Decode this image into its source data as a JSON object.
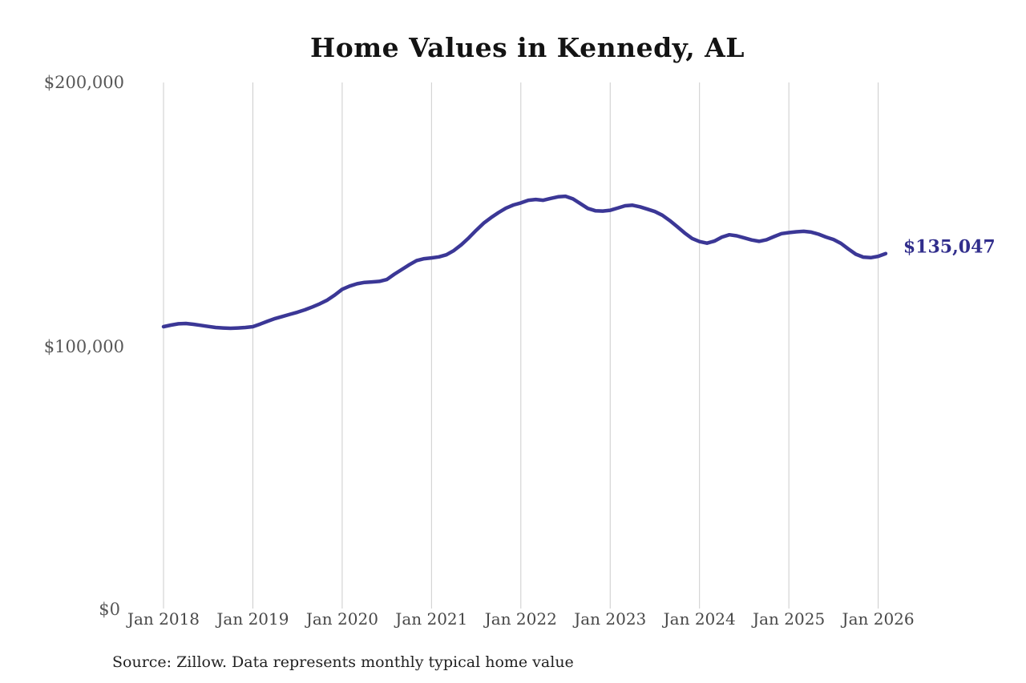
{
  "title": "Home Values in Kennedy, AL",
  "source_note": "Source: Zillow. Data represents monthly typical home value",
  "end_label": "$135,047",
  "chart_data": {
    "type": "line",
    "title": "Home Values in Kennedy, AL",
    "xlabel": "",
    "ylabel": "",
    "x_start": "Jan 2018",
    "x_end": "Feb 2026",
    "frequency": "monthly",
    "x_tick_labels": [
      "Jan 2018",
      "Jan 2019",
      "Jan 2020",
      "Jan 2021",
      "Jan 2022",
      "Jan 2023",
      "Jan 2024",
      "Jan 2025",
      "Jan 2026"
    ],
    "y_tick_labels": [
      "$0",
      "$100,000",
      "$200,000"
    ],
    "y_tick_values": [
      0,
      100000,
      200000
    ],
    "ylim": [
      0,
      200000
    ],
    "grid": "vertical-only",
    "legend": "none",
    "last_value": 135047,
    "line_color": "#3b3796",
    "end_label_color": "#312e8c",
    "grid_color": "#cccccc",
    "series": [
      {
        "name": "Monthly typical home value",
        "values": [
          107300,
          107900,
          108400,
          108500,
          108200,
          107800,
          107400,
          107000,
          106800,
          106700,
          106800,
          107000,
          107300,
          108300,
          109400,
          110400,
          111200,
          112000,
          112800,
          113700,
          114800,
          116000,
          117400,
          119300,
          121500,
          122700,
          123600,
          124100,
          124300,
          124500,
          125200,
          127200,
          129000,
          130800,
          132400,
          133100,
          133400,
          133800,
          134600,
          136200,
          138400,
          141000,
          143900,
          146600,
          148700,
          150600,
          152300,
          153500,
          154300,
          155300,
          155600,
          155300,
          156000,
          156600,
          156800,
          155800,
          154000,
          152200,
          151300,
          151200,
          151500,
          152300,
          153200,
          153400,
          152800,
          151900,
          151000,
          149600,
          147600,
          145300,
          142900,
          140800,
          139600,
          139000,
          139800,
          141300,
          142200,
          141800,
          141000,
          140200,
          139700,
          140300,
          141500,
          142600,
          143000,
          143300,
          143500,
          143200,
          142400,
          141300,
          140400,
          138900,
          136800,
          134800,
          133700,
          133500,
          134000,
          135047
        ]
      }
    ]
  }
}
